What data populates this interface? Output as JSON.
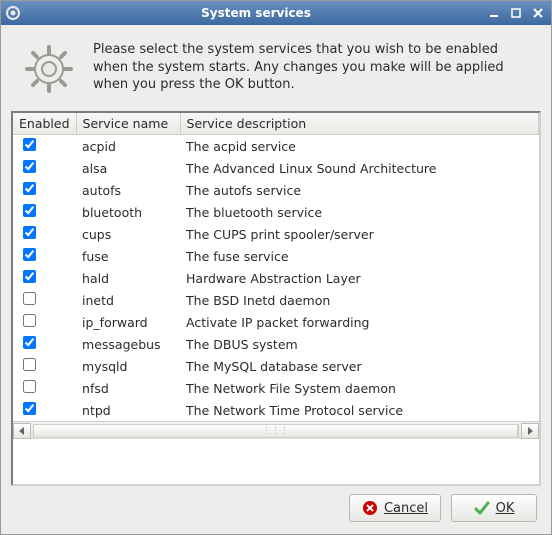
{
  "window": {
    "title": "System services"
  },
  "intro": {
    "text": "Please select the system services that you wish to be enabled when the system starts. Any changes you make will be applied when you press the OK button."
  },
  "table": {
    "headers": {
      "enabled": "Enabled",
      "name": "Service name",
      "desc": "Service description"
    },
    "rows": [
      {
        "enabled": true,
        "name": "acpid",
        "desc": "The acpid service"
      },
      {
        "enabled": true,
        "name": "alsa",
        "desc": "The Advanced Linux Sound Architecture"
      },
      {
        "enabled": true,
        "name": "autofs",
        "desc": "The autofs service"
      },
      {
        "enabled": true,
        "name": "bluetooth",
        "desc": "The bluetooth service"
      },
      {
        "enabled": true,
        "name": "cups",
        "desc": "The CUPS print spooler/server"
      },
      {
        "enabled": true,
        "name": "fuse",
        "desc": "The fuse service"
      },
      {
        "enabled": true,
        "name": "hald",
        "desc": "Hardware Abstraction Layer"
      },
      {
        "enabled": false,
        "name": "inetd",
        "desc": "The BSD Inetd daemon"
      },
      {
        "enabled": false,
        "name": "ip_forward",
        "desc": "Activate IP packet forwarding"
      },
      {
        "enabled": true,
        "name": "messagebus",
        "desc": "The DBUS system"
      },
      {
        "enabled": false,
        "name": "mysqld",
        "desc": "The MySQL database server"
      },
      {
        "enabled": false,
        "name": "nfsd",
        "desc": "The Network File System daemon"
      },
      {
        "enabled": true,
        "name": "ntpd",
        "desc": "The Network Time Protocol service"
      }
    ]
  },
  "buttons": {
    "cancel": "Cancel",
    "ok": "OK"
  },
  "colors": {
    "titlebar_from": "#6a8fc0",
    "titlebar_to": "#3b6aa0",
    "window_bg": "#ededeb",
    "cancel_icon": "#cc0000",
    "ok_icon": "#4caf50"
  }
}
